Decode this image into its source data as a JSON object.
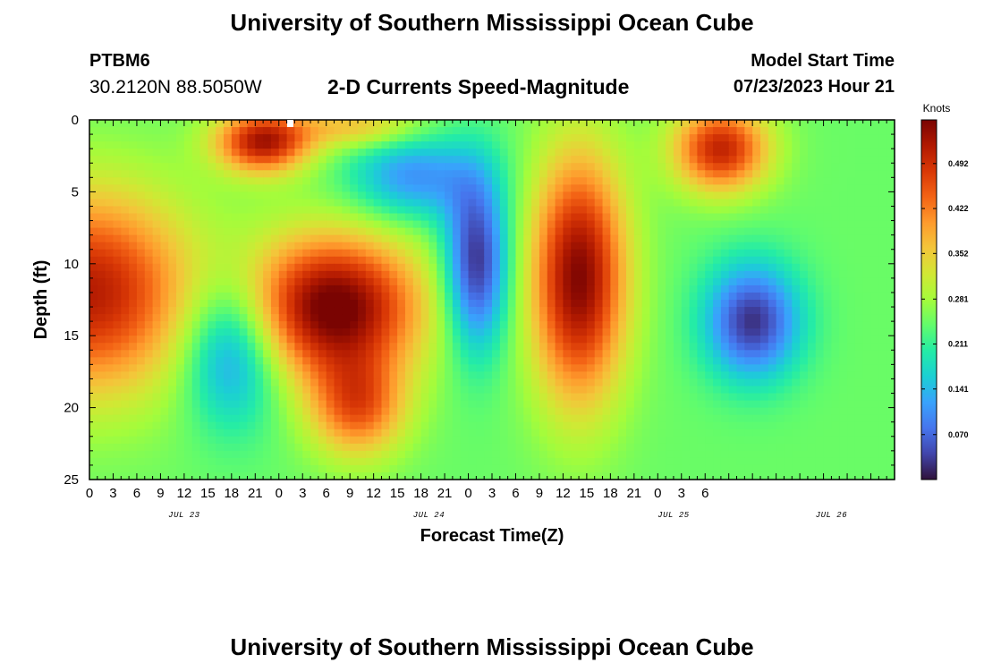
{
  "header": {
    "title": "University of Southern Mississippi Ocean Cube",
    "station": "PTBM6",
    "coordinates": "30.2120N  88.5050W",
    "subtitle": "2-D Currents Speed-Magnitude",
    "model_start_label": "Model Start Time",
    "model_start_value": "07/23/2023 Hour 21"
  },
  "footer": {
    "title": "University of Southern Mississippi Ocean Cube"
  },
  "colors": {
    "colormap": [
      "#30123b",
      "#4145ab",
      "#4675ed",
      "#39a2fc",
      "#1bcfd4",
      "#24eca6",
      "#61fc6c",
      "#a4fc3b",
      "#d1e834",
      "#f3c63a",
      "#fe9b2d",
      "#f36315",
      "#d93806",
      "#b11901",
      "#7a0402"
    ]
  },
  "chart_data": {
    "type": "heatmap",
    "title": "2-D Currents Speed-Magnitude",
    "xlabel": "Forecast Time(Z)",
    "ylabel": "Depth (ft)",
    "x_unit": "hours since model start (07/23/2023 Hour 21)",
    "x_range": [
      -21,
      81
    ],
    "ylim": [
      0,
      25
    ],
    "y_inverted": true,
    "x_tick_labels": [
      "0",
      "3",
      "6",
      "9",
      "12",
      "15",
      "18",
      "21",
      "0",
      "3",
      "6",
      "9",
      "12",
      "15",
      "18",
      "21",
      "0",
      "3",
      "6",
      "9",
      "12",
      "15",
      "18",
      "21",
      "0",
      "3",
      "6"
    ],
    "y_tick_labels": [
      "0",
      "5",
      "10",
      "15",
      "20",
      "25"
    ],
    "date_labels": [
      "JUL 23",
      "JUL 24",
      "JUL 25",
      "JUL 26"
    ],
    "date_label_hours": [
      -9,
      22,
      53,
      73
    ],
    "colorbar": {
      "label": "Knots",
      "min": 0.0,
      "max": 0.56,
      "tick_labels": [
        "0.070",
        "0.141",
        "0.211",
        "0.281",
        "0.352",
        "0.422",
        "0.492"
      ]
    },
    "blobs": [
      {
        "name": "high-left-column",
        "hours": -21,
        "depth": 12,
        "sx": 13,
        "sy": 7,
        "value": 0.27
      },
      {
        "name": "low-left-bottom",
        "hours": -3,
        "depth": 16,
        "sx": 6,
        "sy": 5,
        "value": -0.17
      },
      {
        "name": "high-top-day1",
        "hours": 1,
        "depth": 1.5,
        "sx": 6,
        "sy": 2.2,
        "value": 0.28
      },
      {
        "name": "high-mid-day1",
        "hours": 10,
        "depth": 13,
        "sx": 11,
        "sy": 5,
        "value": 0.33
      },
      {
        "name": "high-lower-day1",
        "hours": 13,
        "depth": 20,
        "sx": 6,
        "sy": 3.5,
        "value": 0.19
      },
      {
        "name": "low-top-right-day1",
        "hours": 20,
        "depth": 4,
        "sx": 8,
        "sy": 3,
        "value": -0.14
      },
      {
        "name": "high-top-mid",
        "hours": 13,
        "depth": 0.5,
        "sx": 8,
        "sy": 1.5,
        "value": 0.12
      },
      {
        "name": "low-column-day2",
        "hours": 28,
        "depth": 10,
        "sx": 4,
        "sy": 6,
        "value": -0.23
      },
      {
        "name": "high-column-day2",
        "hours": 41,
        "depth": 11,
        "sx": 6,
        "sy": 8.5,
        "value": 0.31
      },
      {
        "name": "low-right",
        "hours": 63,
        "depth": 14,
        "sx": 6,
        "sy": 4,
        "value": -0.22
      },
      {
        "name": "high-top-right",
        "hours": 59,
        "depth": 2,
        "sx": 6,
        "sy": 3,
        "value": 0.26
      }
    ]
  }
}
